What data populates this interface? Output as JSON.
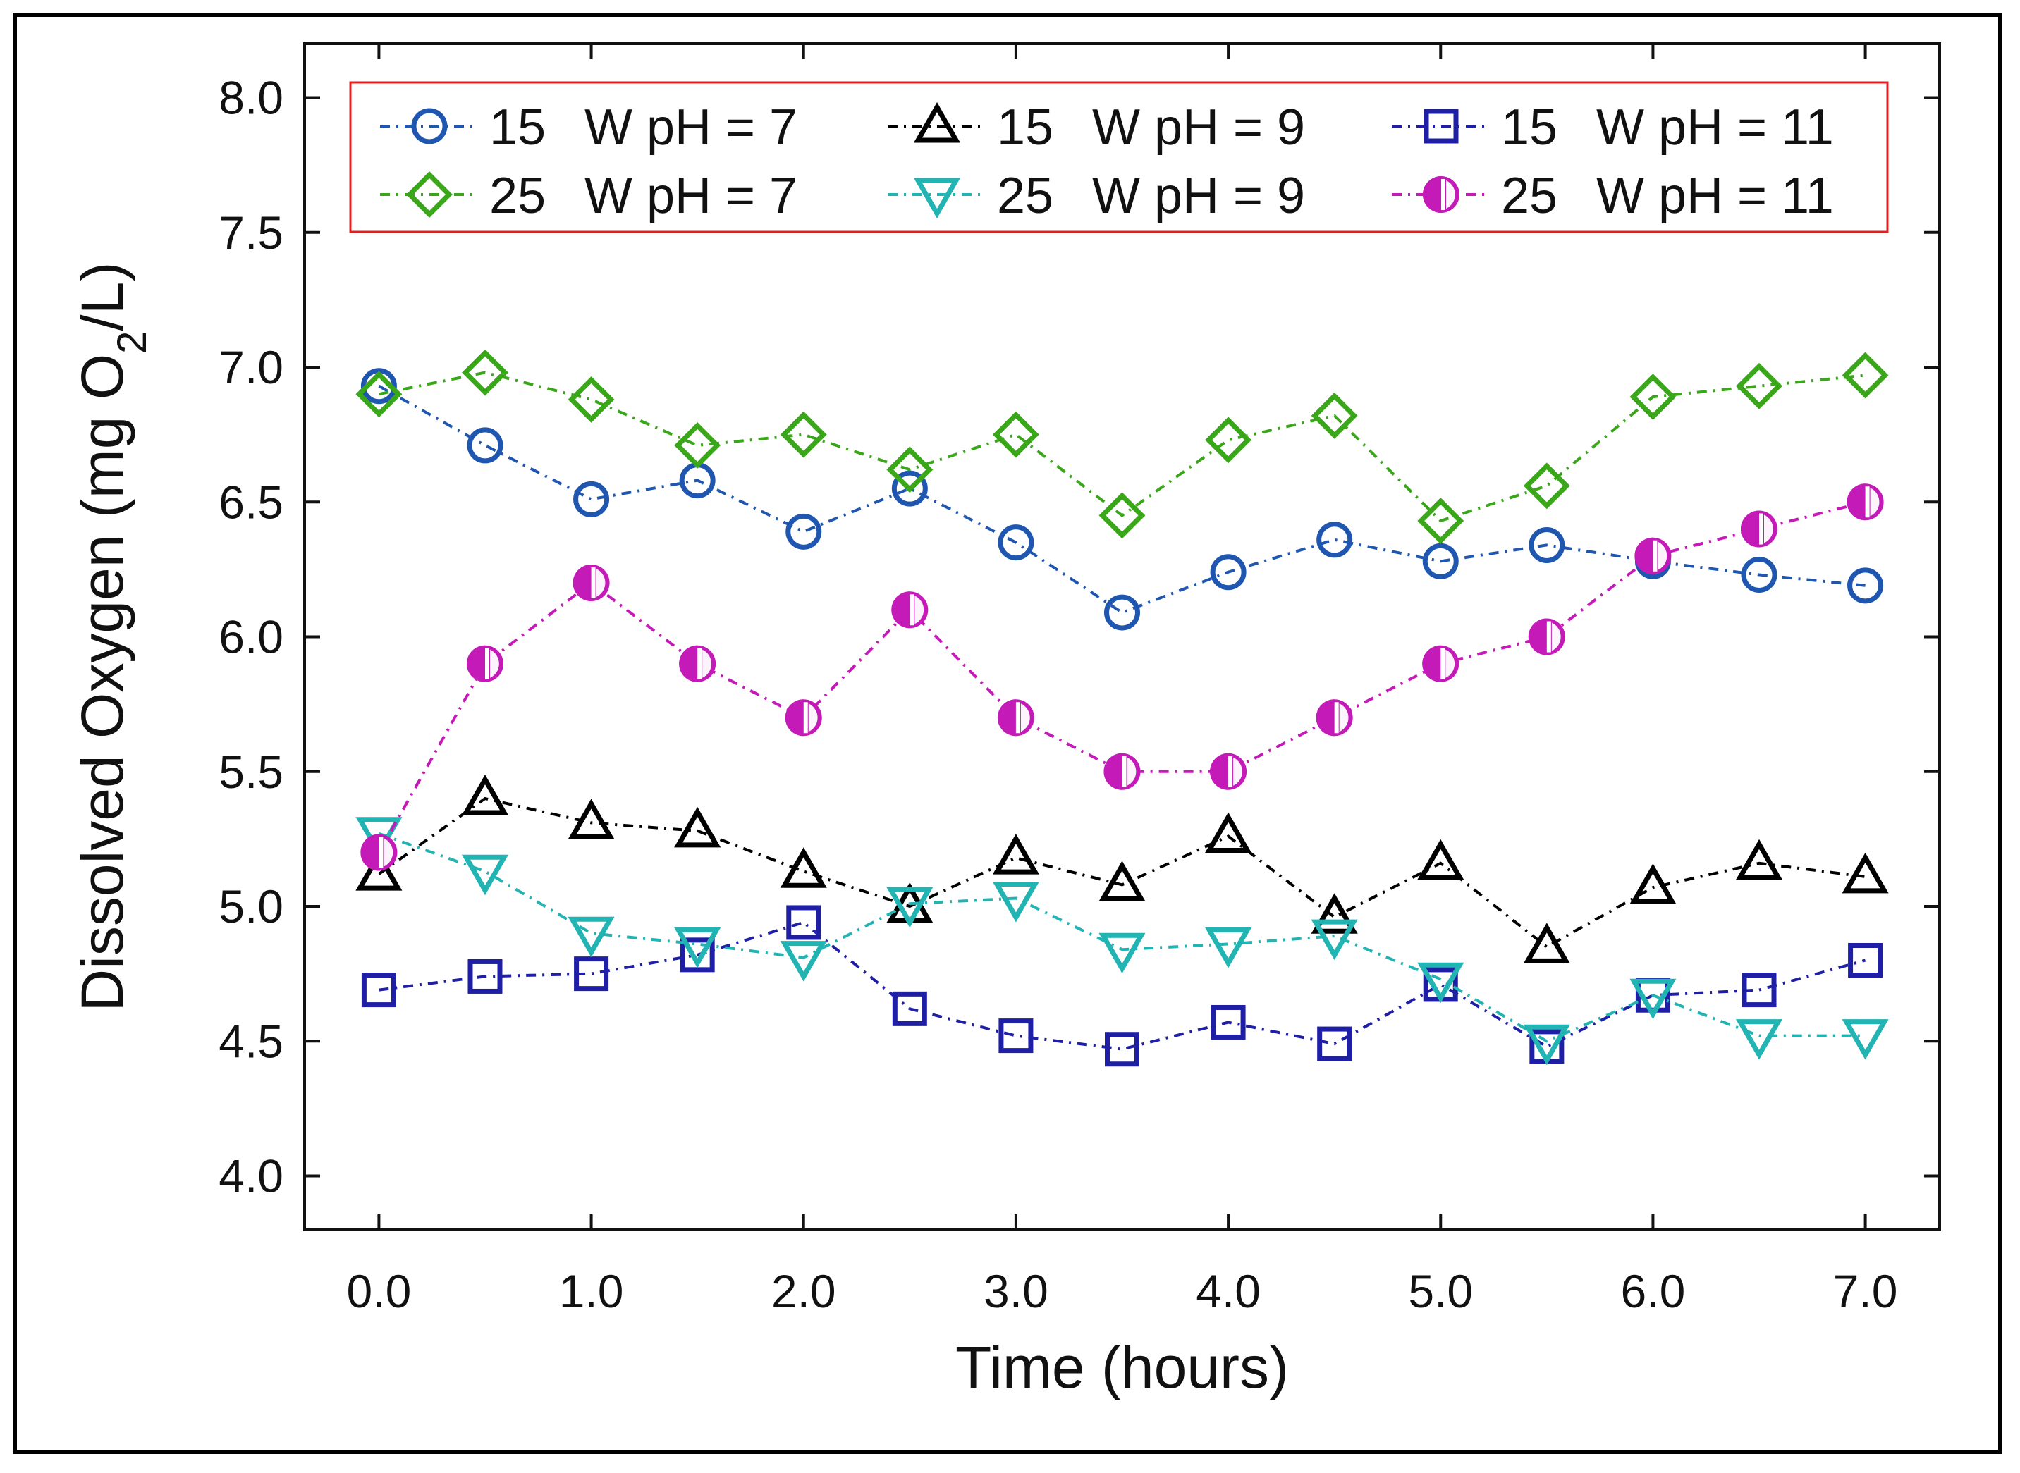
{
  "chart_data": {
    "type": "line",
    "title": "",
    "xlabel": "Time (hours)",
    "ylabel": "Dissolved Oxygen (mg O2/L)",
    "ylabel_parts": {
      "pre": "Dissolved Oxygen (mg O",
      "sub": "2",
      "post": "/L)"
    },
    "xlim": [
      -0.35,
      7.35
    ],
    "ylim": [
      3.8,
      8.2
    ],
    "x_ticks": [
      0,
      1,
      2,
      3,
      4,
      5,
      6,
      7
    ],
    "x_tick_labels": [
      "0.0",
      "1.0",
      "2.0",
      "3.0",
      "4.0",
      "5.0",
      "6.0",
      "7.0"
    ],
    "y_ticks": [
      4.0,
      4.5,
      5.0,
      5.5,
      6.0,
      6.5,
      7.0,
      7.5,
      8.0
    ],
    "y_tick_labels": [
      "4.0",
      "4.5",
      "5.0",
      "5.5",
      "6.0",
      "6.5",
      "7.0",
      "7.5",
      "8.0"
    ],
    "grid": false,
    "legend_position": "top",
    "x": [
      0,
      0.5,
      1,
      1.5,
      2,
      2.5,
      3,
      3.5,
      4,
      4.5,
      5,
      5.5,
      6,
      6.5,
      7
    ],
    "series": [
      {
        "name": "15 W pH = 7",
        "marker": "circle",
        "color": "#1f57b0",
        "values": [
          6.93,
          6.71,
          6.51,
          6.58,
          6.39,
          6.55,
          6.35,
          6.09,
          6.24,
          6.36,
          6.28,
          6.34,
          6.28,
          6.23,
          6.19
        ]
      },
      {
        "name": "15 W pH = 9",
        "marker": "triangle-up",
        "color": "#000000",
        "values": [
          5.12,
          5.4,
          5.31,
          5.28,
          5.13,
          5.0,
          5.18,
          5.08,
          5.26,
          4.96,
          5.16,
          4.85,
          5.07,
          5.16,
          5.11
        ]
      },
      {
        "name": "15 W pH = 11",
        "marker": "square",
        "color": "#1f1fa6",
        "values": [
          4.69,
          4.74,
          4.75,
          4.82,
          4.94,
          4.62,
          4.52,
          4.47,
          4.57,
          4.49,
          4.71,
          4.48,
          4.67,
          4.69,
          4.8
        ]
      },
      {
        "name": "25 W pH = 7",
        "marker": "diamond",
        "color": "#3aa61a",
        "values": [
          6.9,
          6.98,
          6.88,
          6.71,
          6.75,
          6.62,
          6.75,
          6.45,
          6.73,
          6.82,
          6.43,
          6.56,
          6.89,
          6.93,
          6.97
        ]
      },
      {
        "name": "25 W pH = 9",
        "marker": "triangle-down",
        "color": "#22b3b3",
        "values": [
          5.27,
          5.13,
          4.9,
          4.86,
          4.81,
          5.01,
          5.03,
          4.84,
          4.86,
          4.89,
          4.73,
          4.5,
          4.67,
          4.52,
          4.52
        ]
      },
      {
        "name": "25 W pH = 11",
        "marker": "half-circle",
        "color": "#c41ab8",
        "values": [
          5.2,
          5.9,
          6.2,
          5.9,
          5.7,
          6.1,
          5.7,
          5.5,
          5.5,
          5.7,
          5.9,
          6.0,
          6.3,
          6.4,
          6.5
        ]
      }
    ],
    "legend_order": [
      0,
      1,
      2,
      3,
      4,
      5
    ],
    "legend_labels": {
      "0": {
        "num": "15",
        "unit": "W pH = 7"
      },
      "1": {
        "num": "15",
        "unit": "W pH = 9"
      },
      "2": {
        "num": "15",
        "unit": "W pH = 11"
      },
      "3": {
        "num": "25",
        "unit": "W pH = 7"
      },
      "4": {
        "num": "25",
        "unit": "W pH = 9"
      },
      "5": {
        "num": "25",
        "unit": "W pH = 11"
      }
    },
    "legend_border_color": "#e02020"
  }
}
